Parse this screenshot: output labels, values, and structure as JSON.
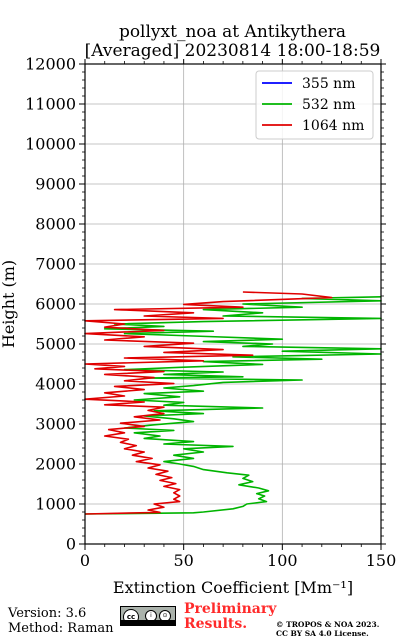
{
  "title_line1": "pollyxt_noa at Antikythera",
  "title_line2": "[Averaged] 20230814 18:00-18:59",
  "footer": {
    "version": "Version: 3.6",
    "method": "Method: Raman",
    "preliminary": "Preliminary Results.",
    "copyright_line1": "© TROPOS & NOA 2023.",
    "copyright_line2": "CC BY SA 4.0 License."
  },
  "chart_data": {
    "type": "line",
    "xlabel": "Extinction Coefficient [Mm⁻¹]",
    "ylabel": "Height (m)",
    "xlim": [
      0,
      150
    ],
    "ylim": [
      0,
      12000
    ],
    "xticks": [
      0,
      50,
      100,
      150
    ],
    "yticks": [
      0,
      1000,
      2000,
      3000,
      4000,
      5000,
      6000,
      7000,
      8000,
      9000,
      10000,
      11000,
      12000
    ],
    "grid": true,
    "legend_placement": "top-right",
    "series": [
      {
        "name": "355 nm",
        "color": "#0000ff",
        "points": []
      },
      {
        "name": "532 nm",
        "color": "#00b400",
        "points": [
          [
            0,
            750
          ],
          [
            55,
            780
          ],
          [
            60,
            800
          ],
          [
            75,
            880
          ],
          [
            80,
            940
          ],
          [
            82,
            1000
          ],
          [
            92,
            1060
          ],
          [
            88,
            1130
          ],
          [
            91,
            1200
          ],
          [
            87,
            1260
          ],
          [
            93,
            1330
          ],
          [
            88,
            1400
          ],
          [
            78,
            1480
          ],
          [
            85,
            1560
          ],
          [
            80,
            1640
          ],
          [
            83,
            1720
          ],
          [
            72,
            1780
          ],
          [
            60,
            1860
          ],
          [
            55,
            1940
          ],
          [
            48,
            2000
          ],
          [
            40,
            2060
          ],
          [
            55,
            2140
          ],
          [
            45,
            2220
          ],
          [
            60,
            2300
          ],
          [
            50,
            2380
          ],
          [
            75,
            2440
          ],
          [
            40,
            2500
          ],
          [
            55,
            2560
          ],
          [
            30,
            2640
          ],
          [
            38,
            2700
          ],
          [
            25,
            2780
          ],
          [
            45,
            2840
          ],
          [
            20,
            2900
          ],
          [
            35,
            2980
          ],
          [
            55,
            3060
          ],
          [
            45,
            3130
          ],
          [
            30,
            3200
          ],
          [
            60,
            3260
          ],
          [
            35,
            3330
          ],
          [
            90,
            3400
          ],
          [
            40,
            3470
          ],
          [
            50,
            3540
          ],
          [
            25,
            3600
          ],
          [
            48,
            3680
          ],
          [
            30,
            3760
          ],
          [
            60,
            3820
          ],
          [
            40,
            3900
          ],
          [
            55,
            3960
          ],
          [
            70,
            4040
          ],
          [
            110,
            4100
          ],
          [
            30,
            4150
          ],
          [
            80,
            4180
          ],
          [
            40,
            4240
          ],
          [
            70,
            4300
          ],
          [
            20,
            4360
          ],
          [
            50,
            4420
          ],
          [
            90,
            4490
          ],
          [
            60,
            4560
          ],
          [
            120,
            4620
          ],
          [
            75,
            4680
          ],
          [
            150,
            4750
          ],
          [
            100,
            4820
          ],
          [
            150,
            4880
          ],
          [
            80,
            4940
          ],
          [
            95,
            5000
          ],
          [
            60,
            5060
          ],
          [
            100,
            5120
          ],
          [
            55,
            5200
          ],
          [
            20,
            5260
          ],
          [
            65,
            5320
          ],
          [
            10,
            5380
          ],
          [
            40,
            5440
          ],
          [
            15,
            5500
          ],
          [
            60,
            5560
          ],
          [
            150,
            5640
          ],
          [
            70,
            5700
          ],
          [
            90,
            5780
          ],
          [
            60,
            5860
          ],
          [
            110,
            5920
          ],
          [
            80,
            6000
          ],
          [
            150,
            6080
          ],
          [
            110,
            6140
          ],
          [
            150,
            6180
          ]
        ]
      },
      {
        "name": "1064 nm",
        "color": "#e00000",
        "points": [
          [
            0,
            750
          ],
          [
            38,
            790
          ],
          [
            32,
            850
          ],
          [
            40,
            920
          ],
          [
            35,
            1000
          ],
          [
            48,
            1060
          ],
          [
            45,
            1120
          ],
          [
            48,
            1200
          ],
          [
            45,
            1280
          ],
          [
            48,
            1360
          ],
          [
            40,
            1440
          ],
          [
            46,
            1510
          ],
          [
            38,
            1590
          ],
          [
            44,
            1660
          ],
          [
            36,
            1740
          ],
          [
            42,
            1820
          ],
          [
            32,
            1900
          ],
          [
            38,
            1980
          ],
          [
            26,
            2060
          ],
          [
            34,
            2140
          ],
          [
            24,
            2220
          ],
          [
            30,
            2300
          ],
          [
            20,
            2380
          ],
          [
            26,
            2460
          ],
          [
            18,
            2540
          ],
          [
            22,
            2620
          ],
          [
            10,
            2700
          ],
          [
            20,
            2780
          ],
          [
            12,
            2860
          ],
          [
            30,
            2940
          ],
          [
            18,
            3020
          ],
          [
            38,
            3100
          ],
          [
            25,
            3180
          ],
          [
            40,
            3260
          ],
          [
            32,
            3340
          ],
          [
            40,
            3420
          ],
          [
            10,
            3480
          ],
          [
            30,
            3550
          ],
          [
            0,
            3620
          ],
          [
            20,
            3700
          ],
          [
            10,
            3780
          ],
          [
            30,
            3860
          ],
          [
            15,
            3940
          ],
          [
            45,
            4010
          ],
          [
            20,
            4080
          ],
          [
            35,
            4160
          ],
          [
            10,
            4240
          ],
          [
            40,
            4310
          ],
          [
            5,
            4380
          ],
          [
            20,
            4440
          ],
          [
            0,
            4500
          ],
          [
            60,
            4580
          ],
          [
            20,
            4650
          ],
          [
            85,
            4720
          ],
          [
            40,
            4790
          ],
          [
            70,
            4860
          ],
          [
            30,
            4940
          ],
          [
            55,
            5020
          ],
          [
            10,
            5100
          ],
          [
            30,
            5180
          ],
          [
            0,
            5260
          ],
          [
            40,
            5340
          ],
          [
            10,
            5420
          ],
          [
            20,
            5500
          ],
          [
            0,
            5580
          ],
          [
            70,
            5640
          ],
          [
            30,
            5700
          ],
          [
            55,
            5780
          ],
          [
            15,
            5860
          ],
          [
            80,
            5920
          ],
          [
            50,
            5990
          ],
          [
            70,
            6060
          ],
          [
            125,
            6160
          ],
          [
            110,
            6250
          ],
          [
            80,
            6300
          ]
        ]
      }
    ]
  }
}
